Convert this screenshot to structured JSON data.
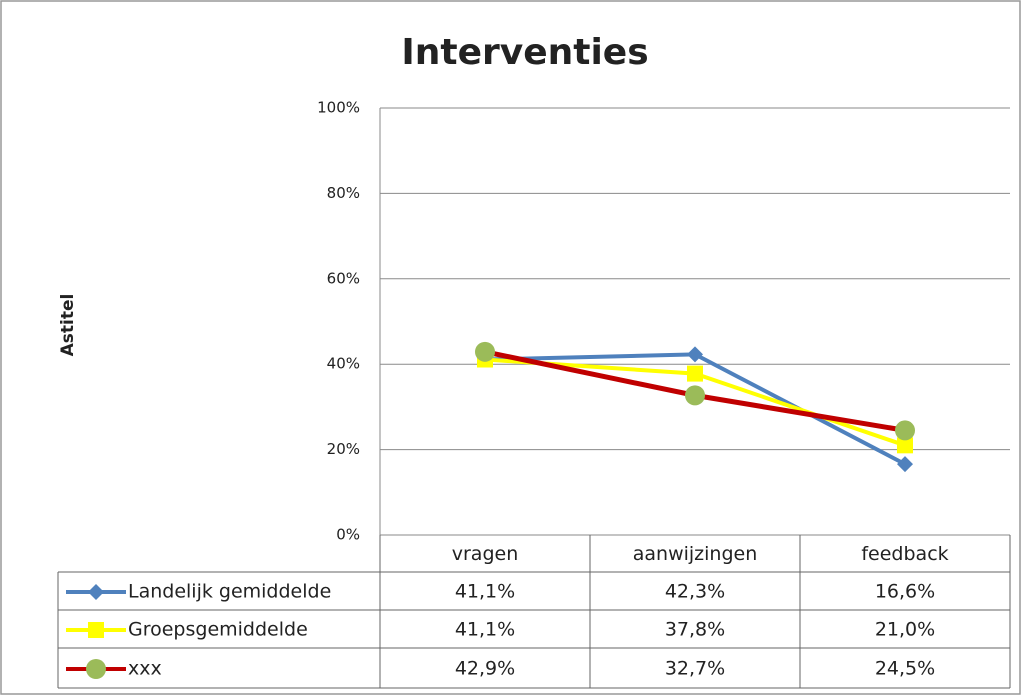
{
  "chart_data": {
    "type": "line",
    "title": "Interventies",
    "y_label": "Astitel",
    "categories": [
      "vragen",
      "aanwijzingen",
      "feedback"
    ],
    "series": [
      {
        "name": "Landelijk gemiddelde",
        "color": "#4f81bd",
        "marker": "diamond",
        "marker_color": "#4f81bd",
        "values": [
          41.1,
          42.3,
          16.6
        ],
        "value_labels": [
          "41,1%",
          "42,3%",
          "16,6%"
        ]
      },
      {
        "name": "Groepsgemiddelde",
        "color": "#ffff00",
        "marker": "square",
        "marker_color": "#ffff00",
        "values": [
          41.1,
          37.8,
          21.0
        ],
        "value_labels": [
          "41,1%",
          "37,8%",
          "21,0%"
        ]
      },
      {
        "name": "xxx",
        "color": "#c00000",
        "marker": "circle",
        "marker_color": "#9bbb59",
        "values": [
          42.9,
          32.7,
          24.5
        ],
        "value_labels": [
          "42,9%",
          "32,7%",
          "24,5%"
        ]
      }
    ],
    "ylim": [
      0,
      100
    ],
    "yticks": [
      {
        "value": 0,
        "label": "0%"
      },
      {
        "value": 20,
        "label": "20%"
      },
      {
        "value": 40,
        "label": "40%"
      },
      {
        "value": 60,
        "label": "60%"
      },
      {
        "value": 80,
        "label": "80%"
      },
      {
        "value": 100,
        "label": "100%"
      }
    ],
    "grid": true
  }
}
